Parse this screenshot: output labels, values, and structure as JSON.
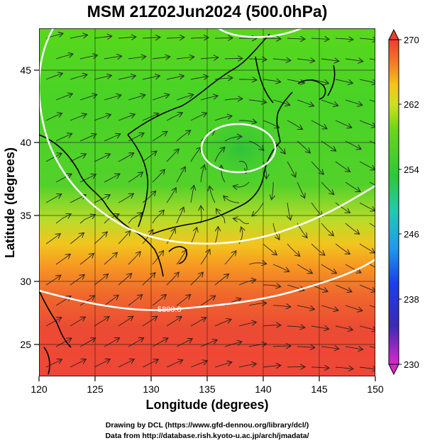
{
  "title": "MSM 21Z02Jun2024 (500.0hPa)",
  "x_axis": {
    "label": "Longitude (degrees)",
    "ticks": [
      "120",
      "125",
      "130",
      "135",
      "140",
      "145",
      "150"
    ],
    "range": [
      120,
      150
    ]
  },
  "y_axis": {
    "label": "Latitude  (degrees)",
    "ticks": [
      "25",
      "30",
      "35",
      "40",
      "45"
    ],
    "range": [
      22.5,
      47.6
    ]
  },
  "colorbar": {
    "ticks": [
      "270",
      "262",
      "254",
      "246",
      "238",
      "230"
    ],
    "range": [
      230,
      270
    ]
  },
  "contour_labels": [
    "5800.0"
  ],
  "credits": {
    "line1": "Drawing by DCL (https://www.gfd-dennou.org/library/dcl/)",
    "line2": "Data from http://database.rish.kyoto-u.ac.jp/arch/jmadata/"
  }
}
